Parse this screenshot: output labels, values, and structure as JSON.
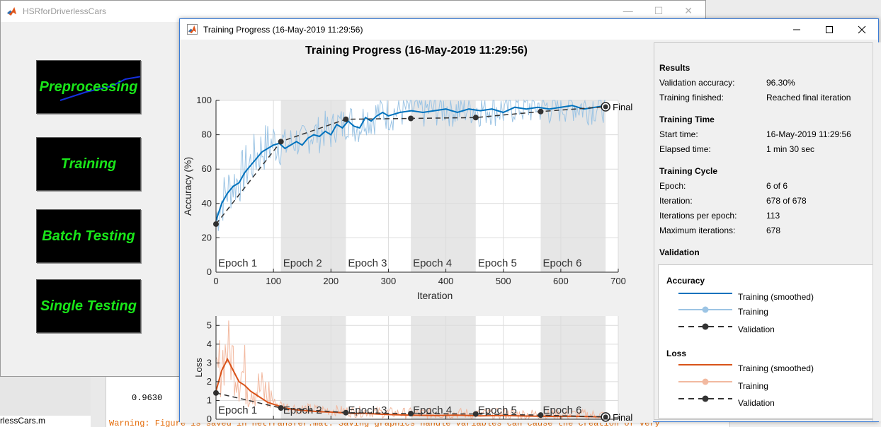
{
  "app": {
    "title": "HSRforDriverlessCars",
    "buttons": {
      "preprocessing": "Preprocessing",
      "training": "Training",
      "batch_testing": "Batch Testing",
      "single_testing": "Single Testing"
    }
  },
  "background": {
    "command_value": "0.9630",
    "warning_text": "Warning: Figure is saved in netTransfer.mat. Saving graphics handle variables can cause the creation of very",
    "file_name": "rlessCars.m"
  },
  "training_window": {
    "title": "Training Progress (16-May-2019 11:29:56)",
    "plot_title": "Training Progress (16-May-2019 11:29:56)"
  },
  "info": {
    "results_heading": "Results",
    "validation_accuracy_label": "Validation accuracy:",
    "validation_accuracy": "96.30%",
    "training_finished_label": "Training finished:",
    "training_finished": "Reached final iteration",
    "time_heading": "Training Time",
    "start_time_label": "Start time:",
    "start_time": "16-May-2019 11:29:56",
    "elapsed_label": "Elapsed time:",
    "elapsed": "1 min 30 sec",
    "cycle_heading": "Training Cycle",
    "epoch_label": "Epoch:",
    "epoch": "6 of 6",
    "iteration_label": "Iteration:",
    "iteration": "678 of 678",
    "ipe_label": "Iterations per epoch:",
    "ipe": "113",
    "maxit_label": "Maximum iterations:",
    "maxit": "678",
    "validation_heading": "Validation"
  },
  "legend": {
    "accuracy_heading": "Accuracy",
    "loss_heading": "Loss",
    "training_smoothed": "Training (smoothed)",
    "training": "Training",
    "validation": "Validation"
  },
  "colors": {
    "acc_smoothed": "#0072bd",
    "acc_raw": "#9cc4e4",
    "loss_smoothed": "#d95319",
    "loss_raw": "#f2b9a0",
    "validation": "#333333",
    "epoch_shade": "#e6e6e6",
    "button_text": "#19e619"
  },
  "chart_data": [
    {
      "type": "line",
      "xlabel": "Iteration",
      "ylabel": "Accuracy (%)",
      "xlim": [
        0,
        700
      ],
      "ylim": [
        0,
        100
      ],
      "xticks": [
        0,
        100,
        200,
        300,
        400,
        500,
        600,
        700
      ],
      "yticks": [
        0,
        20,
        40,
        60,
        80,
        100
      ],
      "epochs": [
        "Epoch 1",
        "Epoch 2",
        "Epoch 3",
        "Epoch 4",
        "Epoch 5",
        "Epoch 6"
      ],
      "epoch_bounds": [
        0,
        113,
        226,
        339,
        452,
        565,
        678
      ],
      "final_label": "Final",
      "validation": {
        "x": [
          0,
          113,
          226,
          339,
          452,
          565,
          678
        ],
        "y": [
          28,
          76,
          89,
          89.5,
          90,
          93.5,
          96.3
        ]
      },
      "smoothed": {
        "x": [
          0,
          10,
          20,
          30,
          40,
          50,
          60,
          70,
          80,
          90,
          100,
          110,
          120,
          130,
          140,
          150,
          160,
          170,
          180,
          190,
          200,
          210,
          220,
          230,
          240,
          250,
          260,
          270,
          280,
          290,
          300,
          320,
          340,
          360,
          380,
          400,
          420,
          440,
          460,
          480,
          500,
          520,
          540,
          560,
          580,
          600,
          620,
          640,
          660,
          678
        ],
        "y": [
          30,
          40,
          46,
          50,
          52,
          58,
          62,
          66,
          70,
          72,
          74,
          75,
          72,
          74,
          76,
          74,
          78,
          80,
          79,
          82,
          80,
          86,
          84,
          88,
          85,
          84,
          90,
          88,
          91,
          93,
          91,
          93,
          94,
          93,
          94,
          95,
          93,
          95,
          94,
          95,
          93,
          96,
          95,
          96,
          95,
          96,
          97,
          95,
          96,
          97
        ]
      }
    },
    {
      "type": "line",
      "xlabel": "Iteration",
      "ylabel": "Loss",
      "xlim": [
        0,
        700
      ],
      "ylim": [
        0,
        5.5
      ],
      "xticks": [
        0,
        100,
        200,
        300,
        400,
        500,
        600,
        700
      ],
      "yticks": [
        0,
        1,
        2,
        3,
        4,
        5
      ],
      "epochs": [
        "Epoch 1",
        "Epoch 2",
        "Epoch 3",
        "Epoch 4",
        "Epoch 5",
        "Epoch 6"
      ],
      "epoch_bounds": [
        0,
        113,
        226,
        339,
        452,
        565,
        678
      ],
      "final_label": "Final",
      "validation": {
        "x": [
          0,
          113,
          226,
          339,
          452,
          565,
          678
        ],
        "y": [
          1.4,
          0.6,
          0.35,
          0.3,
          0.28,
          0.22,
          0.12
        ]
      },
      "smoothed": {
        "x": [
          0,
          10,
          20,
          30,
          40,
          50,
          60,
          70,
          80,
          90,
          100,
          110,
          120,
          140,
          160,
          180,
          200,
          220,
          240,
          260,
          280,
          300,
          340,
          380,
          420,
          460,
          500,
          540,
          580,
          620,
          660,
          678
        ],
        "y": [
          1.5,
          2.6,
          3.2,
          2.6,
          2.0,
          1.8,
          1.5,
          1.3,
          1.1,
          0.9,
          0.8,
          0.7,
          0.6,
          0.5,
          0.45,
          0.4,
          0.38,
          0.35,
          0.3,
          0.32,
          0.28,
          0.25,
          0.22,
          0.2,
          0.22,
          0.18,
          0.2,
          0.17,
          0.15,
          0.16,
          0.13,
          0.12
        ]
      }
    }
  ]
}
